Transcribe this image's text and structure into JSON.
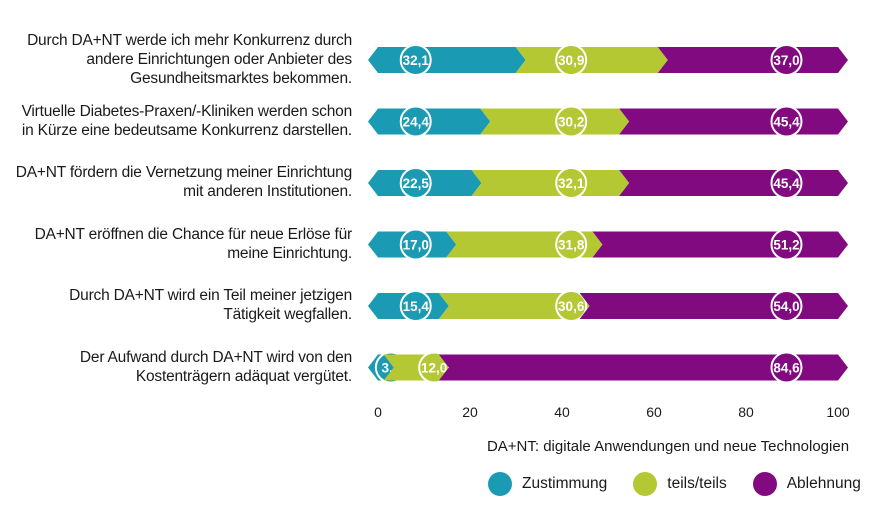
{
  "chart_data": {
    "type": "bar",
    "orientation": "horizontal",
    "stacked": true,
    "categories": [
      "Durch DA+NT werde ich mehr Konkurrenz durch andere Einrichtungen oder Anbieter des Gesundheitsmarktes bekommen.",
      "Virtuelle Diabetes-Praxen/-Kliniken werden schon in Kürze eine bedeutsame Konkurrenz darstellen.",
      "DA+NT fördern die Vernetzung meiner Einrichtung mit anderen Institutionen.",
      "DA+NT eröffnen die Chance für neue Erlöse für meine Einrichtung.",
      "Durch DA+NT wird ein Teil meiner jetzigen Tätigkeit wegfallen.",
      "Der Aufwand durch DA+NT wird von den Kostenträgern adäquat vergütet."
    ],
    "series": [
      {
        "name": "Zustimmung",
        "color": "#1b9bb3",
        "values": [
          32.1,
          24.4,
          22.5,
          17.0,
          15.4,
          3.4
        ]
      },
      {
        "name": "teils/teils",
        "color": "#b3c832",
        "values": [
          30.9,
          30.2,
          32.1,
          31.8,
          30.6,
          12.0
        ]
      },
      {
        "name": "Ablehnung",
        "color": "#810a80",
        "values": [
          37.0,
          45.4,
          45.4,
          51.2,
          54.0,
          84.6
        ]
      }
    ],
    "data_labels": [
      [
        "32,1",
        "30,9",
        "37,0"
      ],
      [
        "24,4",
        "30,2",
        "45,4"
      ],
      [
        "22,5",
        "32,1",
        "45,4"
      ],
      [
        "17,0",
        "31,8",
        "51,2"
      ],
      [
        "15,4",
        "30,6",
        "54,0"
      ],
      [
        "3,4",
        "12,0",
        "84,6"
      ]
    ],
    "xlim": [
      0,
      100
    ],
    "xticks": [
      0,
      20,
      40,
      60,
      80,
      100
    ],
    "grid": false,
    "legend_position": "bottom-right",
    "note": "DA+NT: digitale Anwendungen und neue Technologien"
  }
}
